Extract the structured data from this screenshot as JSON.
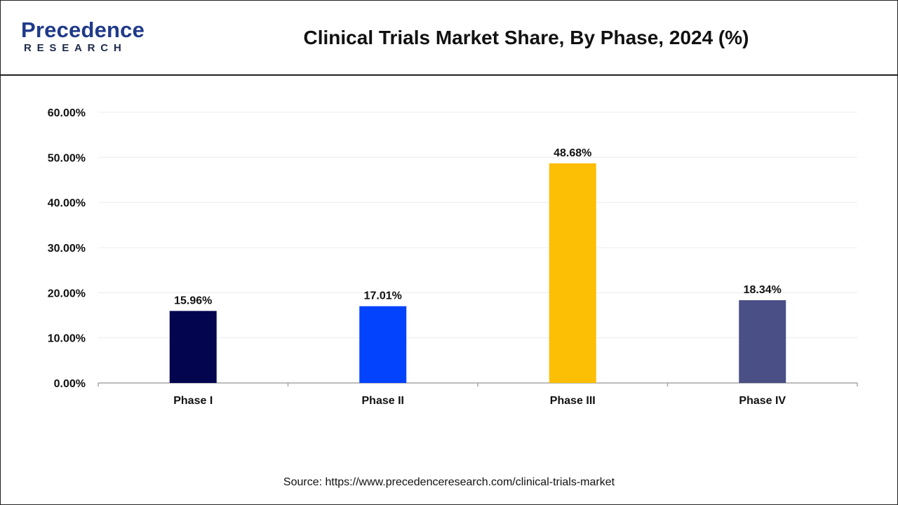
{
  "header": {
    "logo_main": "Precedence",
    "logo_sub": "RESEARCH",
    "title": "Clinical Trials Market Share, By Phase, 2024 (%)"
  },
  "source": "Source: https://www.precedenceresearch.com/clinical-trials-market",
  "chart_data": {
    "type": "bar",
    "title": "Clinical Trials Market Share, By Phase, 2024 (%)",
    "xlabel": "",
    "ylabel": "",
    "categories": [
      "Phase I",
      "Phase II",
      "Phase III",
      "Phase IV"
    ],
    "values": [
      15.96,
      17.01,
      48.68,
      18.34
    ],
    "data_labels": [
      "15.96%",
      "17.01%",
      "48.68%",
      "18.34%"
    ],
    "bar_colors": [
      "#03064f",
      "#0343fd",
      "#fdbe06",
      "#4a4f85"
    ],
    "ylim": [
      0,
      60
    ],
    "yticks": [
      0,
      10,
      20,
      30,
      40,
      50,
      60
    ],
    "ytick_labels": [
      "0.00%",
      "10.00%",
      "20.00%",
      "30.00%",
      "40.00%",
      "50.00%",
      "60.00%"
    ],
    "grid": true,
    "legend": "none"
  }
}
